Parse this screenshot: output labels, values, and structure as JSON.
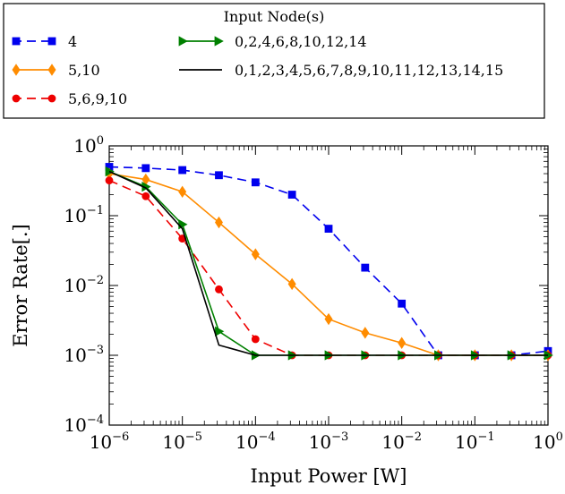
{
  "chart_data": {
    "type": "line",
    "xscale": "log",
    "yscale": "log",
    "xlabel": "Input Power [W]",
    "ylabel": "Error Rate[.]",
    "xlim": [
      1e-06,
      1
    ],
    "ylim": [
      0.0001,
      1
    ],
    "x_ticks": [
      {
        "value": 1e-06,
        "base": "10",
        "exp": "−6"
      },
      {
        "value": 1e-05,
        "base": "10",
        "exp": "−5"
      },
      {
        "value": 0.0001,
        "base": "10",
        "exp": "−4"
      },
      {
        "value": 0.001,
        "base": "10",
        "exp": "−3"
      },
      {
        "value": 0.01,
        "base": "10",
        "exp": "−2"
      },
      {
        "value": 0.1,
        "base": "10",
        "exp": "−1"
      },
      {
        "value": 1,
        "base": "10",
        "exp": "0"
      }
    ],
    "y_ticks": [
      {
        "value": 0.0001,
        "base": "10",
        "exp": "−4"
      },
      {
        "value": 0.001,
        "base": "10",
        "exp": "−3"
      },
      {
        "value": 0.01,
        "base": "10",
        "exp": "−2"
      },
      {
        "value": 0.1,
        "base": "10",
        "exp": "−1"
      },
      {
        "value": 1,
        "base": "10",
        "exp": "0"
      }
    ],
    "grid": false,
    "legend": {
      "title": "Input Node(s)",
      "placement": "top, outside plot"
    },
    "series": [
      {
        "name": "4",
        "color": "#0000ee",
        "marker": "square",
        "linestyle": "dashed",
        "x": [
          1e-06,
          3.16e-06,
          1e-05,
          3.16e-05,
          0.0001,
          0.000316,
          0.001,
          0.00316,
          0.01,
          0.0316,
          0.1,
          0.316,
          1
        ],
        "y": [
          0.5,
          0.48,
          0.45,
          0.38,
          0.3,
          0.2,
          0.065,
          0.018,
          0.0055,
          0.001,
          0.001,
          0.001,
          0.00115
        ]
      },
      {
        "name": "5,10",
        "color": "#ff8c00",
        "marker": "diamond",
        "linestyle": "solid",
        "x": [
          1e-06,
          3.16e-06,
          1e-05,
          3.16e-05,
          0.0001,
          0.000316,
          0.001,
          0.00316,
          0.01,
          0.0316,
          0.1,
          0.316,
          1
        ],
        "y": [
          0.4,
          0.33,
          0.22,
          0.08,
          0.028,
          0.0105,
          0.0033,
          0.0021,
          0.0015,
          0.001,
          0.001,
          0.001,
          0.001
        ]
      },
      {
        "name": "5,6,9,10",
        "color": "#ee0000",
        "marker": "circle",
        "linestyle": "dashed",
        "x": [
          1e-06,
          3.16e-06,
          1e-05,
          3.16e-05,
          0.0001,
          0.000316,
          0.001,
          0.00316,
          0.01,
          0.0316,
          0.1,
          0.316,
          1
        ],
        "y": [
          0.32,
          0.19,
          0.047,
          0.0088,
          0.0017,
          0.001,
          0.001,
          0.001,
          0.001,
          0.001,
          0.001,
          0.001,
          0.001
        ]
      },
      {
        "name": "0,2,4,6,8,10,12,14",
        "color": "#008000",
        "marker": "triangle-right",
        "linestyle": "solid",
        "x": [
          1e-06,
          3.16e-06,
          1e-05,
          3.16e-05,
          0.0001,
          0.000316,
          0.001,
          0.00316,
          0.01,
          0.0316,
          0.1,
          0.316,
          1
        ],
        "y": [
          0.43,
          0.26,
          0.075,
          0.0022,
          0.001,
          0.001,
          0.001,
          0.001,
          0.001,
          0.001,
          0.001,
          0.001,
          0.001
        ]
      },
      {
        "name": "0,1,2,3,4,5,6,7,8,9,10,11,12,13,14,15",
        "color": "#000000",
        "marker": "none",
        "linestyle": "solid",
        "x": [
          1e-06,
          3.16e-06,
          1e-05,
          3.16e-05,
          0.0001,
          0.000316,
          0.001,
          0.00316,
          0.01,
          0.0316,
          0.1,
          0.316,
          1
        ],
        "y": [
          0.43,
          0.25,
          0.065,
          0.0014,
          0.001,
          0.001,
          0.001,
          0.001,
          0.001,
          0.001,
          0.001,
          0.001,
          0.001
        ]
      }
    ]
  }
}
